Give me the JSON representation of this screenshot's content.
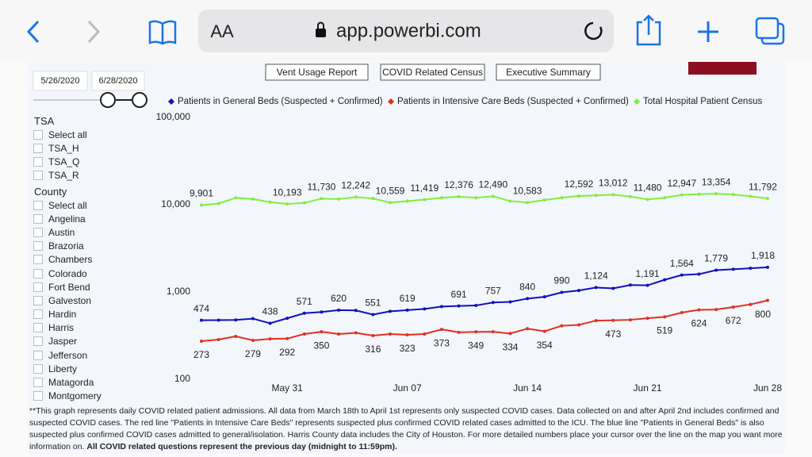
{
  "browser": {
    "text_size": "AA",
    "url": "app.powerbi.com"
  },
  "report": {
    "buttons": [
      "Vent Usage Report",
      "COVID Related Census",
      "Executive Summary"
    ],
    "date_range": [
      "5/26/2020",
      "6/28/2020"
    ],
    "tsa": {
      "title": "TSA",
      "options": [
        "Select all",
        "TSA_H",
        "TSA_Q",
        "TSA_R"
      ]
    },
    "county": {
      "title": "County",
      "options": [
        "Select all",
        "Angelina",
        "Austin",
        "Brazoria",
        "Chambers",
        "Colorado",
        "Fort Bend",
        "Galveston",
        "Hardin",
        "Harris",
        "Jasper",
        "Jefferson",
        "Liberty",
        "Matagorda",
        "Montgomery"
      ]
    },
    "footnote": "**This graph represents daily COVID related patient admissions. All data from March 18th to April 1st represents only suspected COVID cases. Data collected on and after April 2nd includes confirmed and suspected COVID cases.   The red line \"Patients in Intensive Care Beds\" represents suspected plus confirmed COVID related cases admitted to the ICU.  The blue line \"Patients in General Beds\" is also suspected plus confirmed COVID cases admitted to general/isolation. Harris County data includes the City of Houston. For more detailed numbers place your cursor over the line on the map you want more information on.",
    "footnote_bold": "All COVID related questions represent the previous day (midnight to 11:59pm)."
  },
  "chart_data": {
    "type": "line",
    "log_scale": true,
    "grid": false,
    "legend": "top",
    "categories": [
      null,
      null,
      null,
      null,
      null,
      "May 31",
      null,
      null,
      null,
      null,
      null,
      null,
      "Jun 07",
      null,
      null,
      null,
      null,
      null,
      null,
      "Jun 14",
      null,
      null,
      null,
      null,
      null,
      null,
      "Jun 21",
      null,
      null,
      null,
      null,
      null,
      null,
      "Jun 28"
    ],
    "ylim": [
      100,
      100000
    ],
    "yticks": [
      100,
      {
        "value": 1000,
        "label": "1,000"
      },
      {
        "value": 10000,
        "label": "10,000"
      },
      {
        "value": 100000,
        "label": "100,000"
      }
    ],
    "series": [
      {
        "name": "Patients in General Beds (Suspected + Confirmed)",
        "color": "#1010c0",
        "label_side": "above",
        "values": [
          474,
          476,
          478,
          495,
          438,
          500,
          571,
          590,
          620,
          615,
          551,
          600,
          619,
          640,
          680,
          691,
          700,
          757,
          770,
          840,
          880,
          990,
          1040,
          1124,
          1100,
          1200,
          1191,
          1380,
          1564,
          1600,
          1779,
          1820,
          1870,
          1918
        ],
        "value_labels": [
          "474",
          null,
          null,
          null,
          "438",
          null,
          "571",
          null,
          "620",
          null,
          "551",
          null,
          "619",
          null,
          null,
          "691",
          null,
          "757",
          null,
          "840",
          null,
          "990",
          null,
          "1,124",
          null,
          null,
          "1,191",
          null,
          "1,564",
          null,
          "1,779",
          null,
          null,
          "1,918"
        ]
      },
      {
        "name": "Patients in Intensive Care Beds (Suspected + Confirmed)",
        "color": "#e03020",
        "label_side": "below",
        "values": [
          273,
          285,
          310,
          279,
          290,
          292,
          330,
          350,
          330,
          340,
          316,
          330,
          323,
          330,
          373,
          345,
          349,
          350,
          334,
          380,
          354,
          410,
          420,
          470,
          473,
          480,
          500,
          519,
          580,
          624,
          630,
          672,
          720,
          800
        ],
        "value_labels": [
          "273",
          null,
          null,
          "279",
          null,
          "292",
          null,
          "350",
          null,
          null,
          "316",
          null,
          "323",
          null,
          "373",
          null,
          "349",
          null,
          "334",
          null,
          "354",
          null,
          null,
          null,
          "473",
          null,
          null,
          "519",
          null,
          "624",
          null,
          "672",
          null,
          "800"
        ]
      },
      {
        "name": "Total Hospital Patient Census",
        "color": "#80ee40",
        "label_side": "above",
        "values": [
          9901,
          10300,
          12000,
          11600,
          10700,
          10193,
          10500,
          11730,
          11600,
          12242,
          11800,
          10559,
          11000,
          11419,
          12000,
          12376,
          12000,
          12490,
          11000,
          10583,
          11300,
          12000,
          12592,
          12800,
          13012,
          12400,
          11480,
          12000,
          12947,
          13200,
          13354,
          13100,
          12500,
          11792
        ],
        "value_labels": [
          "9,901",
          null,
          null,
          null,
          null,
          "10,193",
          null,
          "11,730",
          null,
          "12,242",
          null,
          "10,559",
          null,
          "11,419",
          null,
          "12,376",
          null,
          "12,490",
          null,
          "10,583",
          null,
          null,
          "12,592",
          null,
          "13,012",
          null,
          "11,480",
          null,
          "12,947",
          null,
          "13,354",
          null,
          null,
          "11,792"
        ]
      }
    ]
  }
}
